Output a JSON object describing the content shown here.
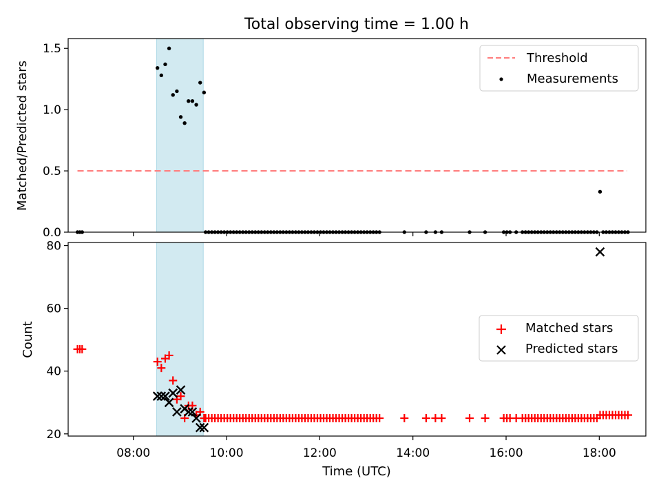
{
  "figure": {
    "title": "Total observing time = 1.00 h"
  },
  "chart_data": [
    {
      "type": "scatter",
      "title": "Total observing time = 1.00 h",
      "xlabel": "",
      "ylabel": "Matched/Predicted stars",
      "xlim": [
        "06:36",
        "19:00"
      ],
      "ylim": [
        0,
        1.58
      ],
      "yticks": [
        0.0,
        0.5,
        1.0,
        1.5
      ],
      "ytick_labels": [
        "0.0",
        "0.5",
        "1.0",
        "1.5"
      ],
      "highlight_span": {
        "start": "08:30",
        "end": "09:30",
        "color": "#add8e6"
      },
      "legend_position": "upper right",
      "series": [
        {
          "name": "Threshold",
          "style": "dashed-line",
          "color": "#ff7f7f",
          "x": [
            "06:48",
            "18:36"
          ],
          "y": [
            0.5,
            0.5
          ]
        },
        {
          "name": "Measurements",
          "style": "dot",
          "color": "#000000",
          "points": [
            [
              "06:48",
              0
            ],
            [
              "06:51",
              0
            ],
            [
              "06:54",
              0
            ],
            [
              "08:31",
              1.34
            ],
            [
              "08:36",
              1.28
            ],
            [
              "08:41",
              1.37
            ],
            [
              "08:46",
              1.5
            ],
            [
              "08:51",
              1.12
            ],
            [
              "08:56",
              1.15
            ],
            [
              "09:01",
              0.94
            ],
            [
              "09:06",
              0.89
            ],
            [
              "09:11",
              1.07
            ],
            [
              "09:16",
              1.07
            ],
            [
              "09:21",
              1.04
            ],
            [
              "09:26",
              1.22
            ],
            [
              "09:31",
              1.14
            ],
            [
              "09:33",
              0
            ],
            [
              "09:37",
              0
            ],
            [
              "09:41",
              0
            ],
            [
              "09:45",
              0
            ],
            [
              "09:49",
              0
            ],
            [
              "09:53",
              0
            ],
            [
              "09:57",
              0
            ],
            [
              "10:01",
              0
            ],
            [
              "10:05",
              0
            ],
            [
              "10:09",
              0
            ],
            [
              "10:13",
              0
            ],
            [
              "10:17",
              0
            ],
            [
              "10:21",
              0
            ],
            [
              "10:25",
              0
            ],
            [
              "10:29",
              0
            ],
            [
              "10:33",
              0
            ],
            [
              "10:37",
              0
            ],
            [
              "10:41",
              0
            ],
            [
              "10:45",
              0
            ],
            [
              "10:49",
              0
            ],
            [
              "10:53",
              0
            ],
            [
              "10:57",
              0
            ],
            [
              "11:01",
              0
            ],
            [
              "11:05",
              0
            ],
            [
              "11:09",
              0
            ],
            [
              "11:13",
              0
            ],
            [
              "11:17",
              0
            ],
            [
              "11:21",
              0
            ],
            [
              "11:25",
              0
            ],
            [
              "11:29",
              0
            ],
            [
              "11:33",
              0
            ],
            [
              "11:37",
              0
            ],
            [
              "11:41",
              0
            ],
            [
              "11:45",
              0
            ],
            [
              "11:49",
              0
            ],
            [
              "11:53",
              0
            ],
            [
              "11:57",
              0
            ],
            [
              "12:01",
              0
            ],
            [
              "12:05",
              0
            ],
            [
              "12:09",
              0
            ],
            [
              "12:13",
              0
            ],
            [
              "12:17",
              0
            ],
            [
              "12:21",
              0
            ],
            [
              "12:25",
              0
            ],
            [
              "12:29",
              0
            ],
            [
              "12:33",
              0
            ],
            [
              "12:37",
              0
            ],
            [
              "12:41",
              0
            ],
            [
              "12:45",
              0
            ],
            [
              "12:49",
              0
            ],
            [
              "12:53",
              0
            ],
            [
              "12:57",
              0
            ],
            [
              "13:01",
              0
            ],
            [
              "13:05",
              0
            ],
            [
              "13:09",
              0
            ],
            [
              "13:13",
              0
            ],
            [
              "13:17",
              0
            ],
            [
              "13:49",
              0
            ],
            [
              "14:17",
              0
            ],
            [
              "14:29",
              0
            ],
            [
              "14:37",
              0
            ],
            [
              "15:13",
              0
            ],
            [
              "15:33",
              0
            ],
            [
              "15:57",
              0
            ],
            [
              "16:01",
              0
            ],
            [
              "16:05",
              0
            ],
            [
              "16:13",
              0
            ],
            [
              "16:21",
              0
            ],
            [
              "16:25",
              0
            ],
            [
              "16:29",
              0
            ],
            [
              "16:33",
              0
            ],
            [
              "16:37",
              0
            ],
            [
              "16:41",
              0
            ],
            [
              "16:45",
              0
            ],
            [
              "16:49",
              0
            ],
            [
              "16:53",
              0
            ],
            [
              "16:57",
              0
            ],
            [
              "17:01",
              0
            ],
            [
              "17:05",
              0
            ],
            [
              "17:09",
              0
            ],
            [
              "17:13",
              0
            ],
            [
              "17:17",
              0
            ],
            [
              "17:21",
              0
            ],
            [
              "17:25",
              0
            ],
            [
              "17:29",
              0
            ],
            [
              "17:33",
              0
            ],
            [
              "17:37",
              0
            ],
            [
              "17:41",
              0
            ],
            [
              "17:45",
              0
            ],
            [
              "17:49",
              0
            ],
            [
              "17:53",
              0
            ],
            [
              "17:57",
              0
            ],
            [
              "18:01",
              0.33
            ],
            [
              "18:05",
              0
            ],
            [
              "18:09",
              0
            ],
            [
              "18:13",
              0
            ],
            [
              "18:17",
              0
            ],
            [
              "18:21",
              0
            ],
            [
              "18:25",
              0
            ],
            [
              "18:29",
              0
            ],
            [
              "18:33",
              0
            ],
            [
              "18:37",
              0
            ]
          ]
        }
      ]
    },
    {
      "type": "scatter",
      "title": "",
      "xlabel": "Time (UTC)",
      "ylabel": "Count",
      "xlim": [
        "06:36",
        "19:00"
      ],
      "ylim": [
        19.3,
        81
      ],
      "xticks": [
        "08:00",
        "10:00",
        "12:00",
        "14:00",
        "16:00",
        "18:00"
      ],
      "yticks": [
        20,
        40,
        60,
        80
      ],
      "ytick_labels": [
        "20",
        "40",
        "60",
        "80"
      ],
      "highlight_span": {
        "start": "08:30",
        "end": "09:30",
        "color": "#add8e6"
      },
      "legend_position": "center right",
      "series": [
        {
          "name": "Matched stars",
          "marker": "+",
          "color": "#ff0000",
          "points": [
            [
              "06:48",
              47
            ],
            [
              "06:51",
              47
            ],
            [
              "06:54",
              47
            ],
            [
              "08:31",
              43
            ],
            [
              "08:36",
              41
            ],
            [
              "08:41",
              44
            ],
            [
              "08:46",
              45
            ],
            [
              "08:51",
              37
            ],
            [
              "08:56",
              31
            ],
            [
              "09:01",
              32
            ],
            [
              "09:06",
              25
            ],
            [
              "09:11",
              29
            ],
            [
              "09:16",
              29
            ],
            [
              "09:21",
              26
            ],
            [
              "09:26",
              27
            ],
            [
              "09:31",
              25
            ],
            [
              "09:33",
              25
            ],
            [
              "09:37",
              25
            ],
            [
              "09:41",
              25
            ],
            [
              "09:45",
              25
            ],
            [
              "09:49",
              25
            ],
            [
              "09:53",
              25
            ],
            [
              "09:57",
              25
            ],
            [
              "10:01",
              25
            ],
            [
              "10:05",
              25
            ],
            [
              "10:09",
              25
            ],
            [
              "10:13",
              25
            ],
            [
              "10:17",
              25
            ],
            [
              "10:21",
              25
            ],
            [
              "10:25",
              25
            ],
            [
              "10:29",
              25
            ],
            [
              "10:33",
              25
            ],
            [
              "10:37",
              25
            ],
            [
              "10:41",
              25
            ],
            [
              "10:45",
              25
            ],
            [
              "10:49",
              25
            ],
            [
              "10:53",
              25
            ],
            [
              "10:57",
              25
            ],
            [
              "11:01",
              25
            ],
            [
              "11:05",
              25
            ],
            [
              "11:09",
              25
            ],
            [
              "11:13",
              25
            ],
            [
              "11:17",
              25
            ],
            [
              "11:21",
              25
            ],
            [
              "11:25",
              25
            ],
            [
              "11:29",
              25
            ],
            [
              "11:33",
              25
            ],
            [
              "11:37",
              25
            ],
            [
              "11:41",
              25
            ],
            [
              "11:45",
              25
            ],
            [
              "11:49",
              25
            ],
            [
              "11:53",
              25
            ],
            [
              "11:57",
              25
            ],
            [
              "12:01",
              25
            ],
            [
              "12:05",
              25
            ],
            [
              "12:09",
              25
            ],
            [
              "12:13",
              25
            ],
            [
              "12:17",
              25
            ],
            [
              "12:21",
              25
            ],
            [
              "12:25",
              25
            ],
            [
              "12:29",
              25
            ],
            [
              "12:33",
              25
            ],
            [
              "12:37",
              25
            ],
            [
              "12:41",
              25
            ],
            [
              "12:45",
              25
            ],
            [
              "12:49",
              25
            ],
            [
              "12:53",
              25
            ],
            [
              "12:57",
              25
            ],
            [
              "13:01",
              25
            ],
            [
              "13:05",
              25
            ],
            [
              "13:09",
              25
            ],
            [
              "13:13",
              25
            ],
            [
              "13:17",
              25
            ],
            [
              "13:49",
              25
            ],
            [
              "14:17",
              25
            ],
            [
              "14:29",
              25
            ],
            [
              "14:37",
              25
            ],
            [
              "15:13",
              25
            ],
            [
              "15:33",
              25
            ],
            [
              "15:57",
              25
            ],
            [
              "16:01",
              25
            ],
            [
              "16:05",
              25
            ],
            [
              "16:13",
              25
            ],
            [
              "16:21",
              25
            ],
            [
              "16:25",
              25
            ],
            [
              "16:29",
              25
            ],
            [
              "16:33",
              25
            ],
            [
              "16:37",
              25
            ],
            [
              "16:41",
              25
            ],
            [
              "16:45",
              25
            ],
            [
              "16:49",
              25
            ],
            [
              "16:53",
              25
            ],
            [
              "16:57",
              25
            ],
            [
              "17:01",
              25
            ],
            [
              "17:05",
              25
            ],
            [
              "17:09",
              25
            ],
            [
              "17:13",
              25
            ],
            [
              "17:17",
              25
            ],
            [
              "17:21",
              25
            ],
            [
              "17:25",
              25
            ],
            [
              "17:29",
              25
            ],
            [
              "17:33",
              25
            ],
            [
              "17:37",
              25
            ],
            [
              "17:41",
              25
            ],
            [
              "17:45",
              25
            ],
            [
              "17:49",
              25
            ],
            [
              "17:53",
              25
            ],
            [
              "17:57",
              25
            ],
            [
              "18:01",
              26
            ],
            [
              "18:05",
              26
            ],
            [
              "18:09",
              26
            ],
            [
              "18:13",
              26
            ],
            [
              "18:17",
              26
            ],
            [
              "18:21",
              26
            ],
            [
              "18:25",
              26
            ],
            [
              "18:29",
              26
            ],
            [
              "18:33",
              26
            ],
            [
              "18:37",
              26
            ]
          ]
        },
        {
          "name": "Predicted stars",
          "marker": "x",
          "color": "#000000",
          "points": [
            [
              "08:31",
              32
            ],
            [
              "08:36",
              32
            ],
            [
              "08:41",
              32
            ],
            [
              "08:46",
              30
            ],
            [
              "08:51",
              33
            ],
            [
              "08:56",
              27
            ],
            [
              "09:01",
              34
            ],
            [
              "09:06",
              28
            ],
            [
              "09:11",
              27
            ],
            [
              "09:16",
              27
            ],
            [
              "09:21",
              25
            ],
            [
              "09:26",
              22
            ],
            [
              "09:31",
              22
            ],
            [
              "18:01",
              78
            ]
          ]
        }
      ]
    }
  ]
}
